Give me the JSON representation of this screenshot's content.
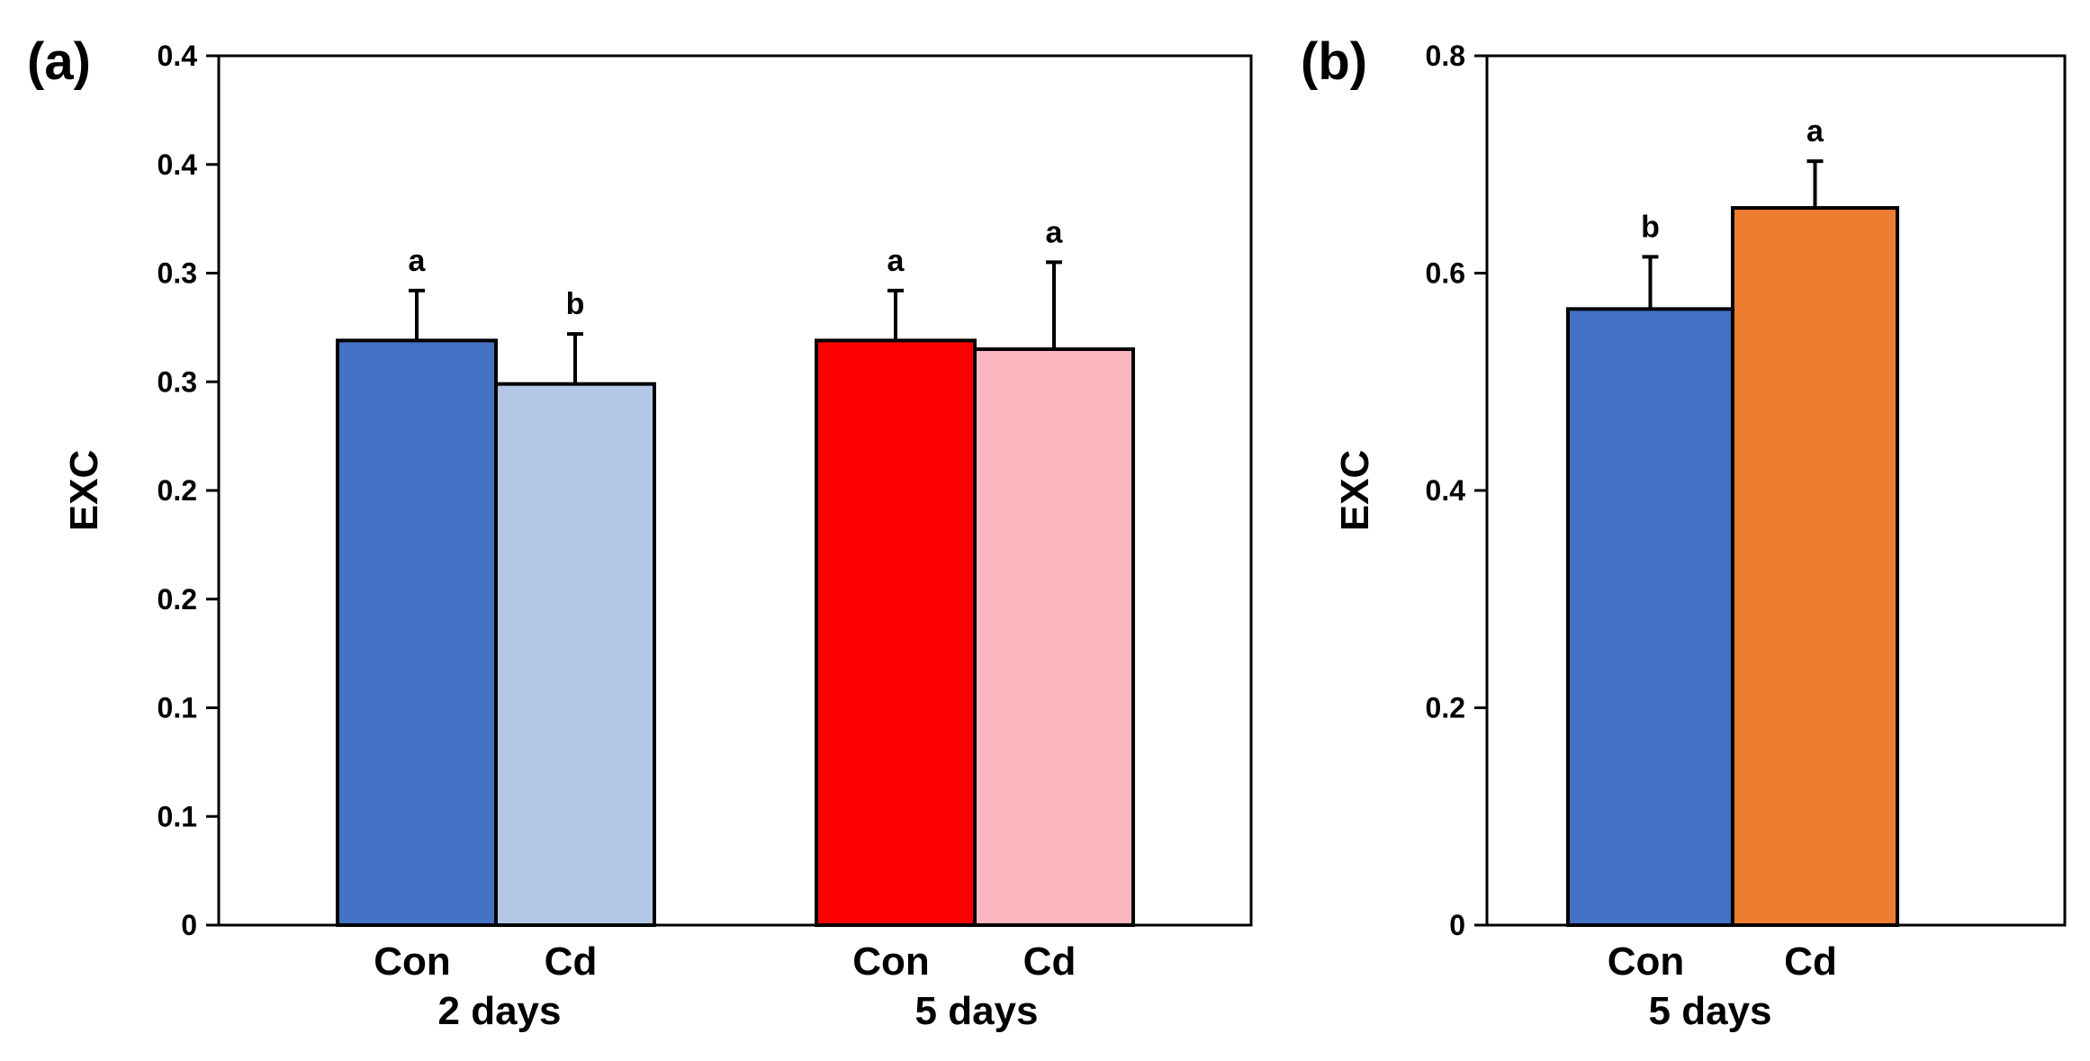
{
  "chart_data": [
    {
      "panel_label": "(a)",
      "type": "bar",
      "ylabel": "EXC",
      "ylim": [
        0,
        0.4
      ],
      "ytick_values": [
        0,
        0.05,
        0.1,
        0.15,
        0.2,
        0.25,
        0.3,
        0.35,
        0.4
      ],
      "ytick_labels": [
        "0",
        "0.1",
        "0.1",
        "0.2",
        "0.2",
        "0.3",
        "0.3",
        "0.4",
        "0.4"
      ],
      "groups": [
        {
          "label": "2 days",
          "bars": [
            {
              "category": "Con",
              "value": 0.269,
              "error": 0.023,
              "sig": "a",
              "color": "#4472c4"
            },
            {
              "category": "Cd",
              "value": 0.249,
              "error": 0.023,
              "sig": "b",
              "color": "#b4c7e7"
            }
          ]
        },
        {
          "label": "5 days",
          "bars": [
            {
              "category": "Con",
              "value": 0.269,
              "error": 0.023,
              "sig": "a",
              "color": "#ff0000"
            },
            {
              "category": "Cd",
              "value": 0.265,
              "error": 0.04,
              "sig": "a",
              "color": "#fbb7c0"
            }
          ]
        }
      ]
    },
    {
      "panel_label": "(b)",
      "type": "bar",
      "ylabel": "EXC",
      "ylim": [
        0,
        0.8
      ],
      "ytick_values": [
        0,
        0.2,
        0.4,
        0.6,
        0.8
      ],
      "ytick_labels": [
        "0",
        "0.2",
        "0.4",
        "0.6",
        "0.8"
      ],
      "groups": [
        {
          "label": "5 days",
          "bars": [
            {
              "category": "Con",
              "value": 0.567,
              "error": 0.048,
              "sig": "b",
              "color": "#4472c4"
            },
            {
              "category": "Cd",
              "value": 0.66,
              "error": 0.043,
              "sig": "a",
              "color": "#ed7d31"
            }
          ]
        }
      ]
    }
  ]
}
